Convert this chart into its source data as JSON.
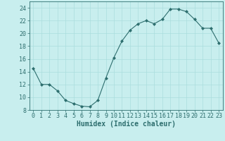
{
  "x": [
    0,
    1,
    2,
    3,
    4,
    5,
    6,
    7,
    8,
    9,
    10,
    11,
    12,
    13,
    14,
    15,
    16,
    17,
    18,
    19,
    20,
    21,
    22,
    23
  ],
  "y": [
    14.5,
    12.0,
    12.0,
    11.0,
    9.5,
    9.0,
    8.6,
    8.5,
    9.5,
    13.0,
    16.2,
    18.8,
    20.5,
    21.5,
    22.0,
    21.5,
    22.2,
    23.8,
    23.8,
    23.4,
    22.2,
    20.8,
    20.8,
    18.5
  ],
  "line_color": "#2d6e6e",
  "marker_color": "#2d6e6e",
  "bg_color": "#c8eeee",
  "grid_color": "#aadddd",
  "xlabel": "Humidex (Indice chaleur)",
  "xlabel_fontsize": 7,
  "tick_fontsize": 6,
  "ylim": [
    8,
    25
  ],
  "xlim": [
    -0.5,
    23.5
  ],
  "yticks": [
    8,
    10,
    12,
    14,
    16,
    18,
    20,
    22,
    24
  ],
  "xticks": [
    0,
    1,
    2,
    3,
    4,
    5,
    6,
    7,
    8,
    9,
    10,
    11,
    12,
    13,
    14,
    15,
    16,
    17,
    18,
    19,
    20,
    21,
    22,
    23
  ]
}
